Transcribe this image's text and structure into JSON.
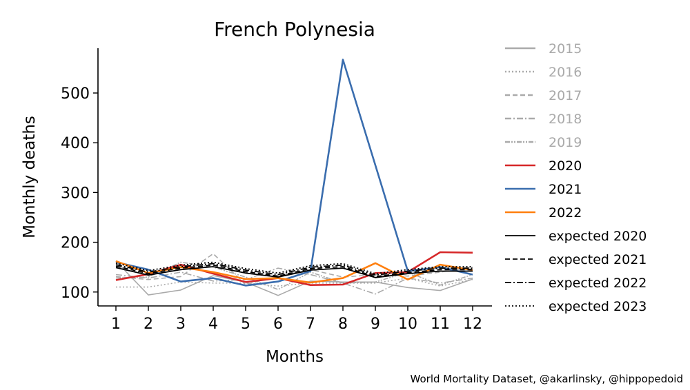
{
  "chart_data": {
    "type": "line",
    "title": "French Polynesia",
    "xlabel": "Months",
    "ylabel": "Monthly deaths",
    "x": [
      1,
      2,
      3,
      4,
      5,
      6,
      7,
      8,
      9,
      10,
      11,
      12
    ],
    "x_ticks": [
      "1",
      "2",
      "3",
      "4",
      "5",
      "6",
      "7",
      "8",
      "9",
      "10",
      "11",
      "12"
    ],
    "y_ticks": [
      "100",
      "200",
      "300",
      "400",
      "500"
    ],
    "ylim": [
      72,
      590
    ],
    "grid": false,
    "legend_position": "right",
    "series": [
      {
        "name": "2015",
        "color": "#aaaaaa",
        "dash": "solid",
        "values": [
          162,
          94,
          104,
          133,
          120,
          93,
          122,
          120,
          120,
          109,
          103,
          126
        ]
      },
      {
        "name": "2016",
        "color": "#aaaaaa",
        "dash": "dotted",
        "values": [
          110,
          110,
          120,
          118,
          118,
          112,
          118,
          118,
          118,
          128,
          112,
          125
        ]
      },
      {
        "name": "2017",
        "color": "#aaaaaa",
        "dash": "dashed",
        "values": [
          131,
          125,
          131,
          177,
          115,
          132,
          145,
          130,
          135,
          132,
          140,
          150
        ]
      },
      {
        "name": "2018",
        "color": "#aaaaaa",
        "dash": "dashdot",
        "values": [
          135,
          128,
          140,
          122,
          125,
          148,
          135,
          118,
          96,
          128,
          118,
          128
        ]
      },
      {
        "name": "2019",
        "color": "#aaaaaa",
        "dash": "dashdotdot",
        "values": [
          128,
          130,
          160,
          150,
          130,
          105,
          140,
          118,
          120,
          140,
          114,
          135
        ]
      },
      {
        "name": "2020",
        "color": "#d62728",
        "dash": "solid",
        "values": [
          124,
          136,
          155,
          137,
          120,
          128,
          114,
          115,
          138,
          140,
          180,
          179
        ]
      },
      {
        "name": "2021",
        "color": "#3a6dae",
        "dash": "solid",
        "values": [
          160,
          145,
          121,
          128,
          113,
          121,
          142,
          567,
          355,
          142,
          150,
          135
        ]
      },
      {
        "name": "2022",
        "color": "#ff7f0e",
        "dash": "solid",
        "values": [
          162,
          138,
          150,
          140,
          126,
          128,
          119,
          128,
          158,
          125,
          155,
          144
        ]
      },
      {
        "name": "expected 2020",
        "color": "#000000",
        "dash": "solid",
        "values": [
          149,
          134,
          145,
          151,
          138,
          130,
          144,
          148,
          129,
          137,
          142,
          142
        ]
      },
      {
        "name": "expected 2021",
        "color": "#000000",
        "dash": "dashed",
        "values": [
          152,
          137,
          148,
          154,
          141,
          132,
          147,
          151,
          131,
          139,
          145,
          145
        ]
      },
      {
        "name": "expected 2022",
        "color": "#000000",
        "dash": "dashdot",
        "values": [
          155,
          140,
          151,
          157,
          144,
          135,
          150,
          154,
          134,
          142,
          148,
          148
        ]
      },
      {
        "name": "expected 2023",
        "color": "#000000",
        "dash": "dotted",
        "values": [
          158,
          143,
          154,
          160,
          147,
          138,
          153,
          157,
          137,
          145,
          151,
          151
        ]
      }
    ]
  },
  "credit": "World Mortality Dataset, @akarlinsky, @hippopedoid"
}
